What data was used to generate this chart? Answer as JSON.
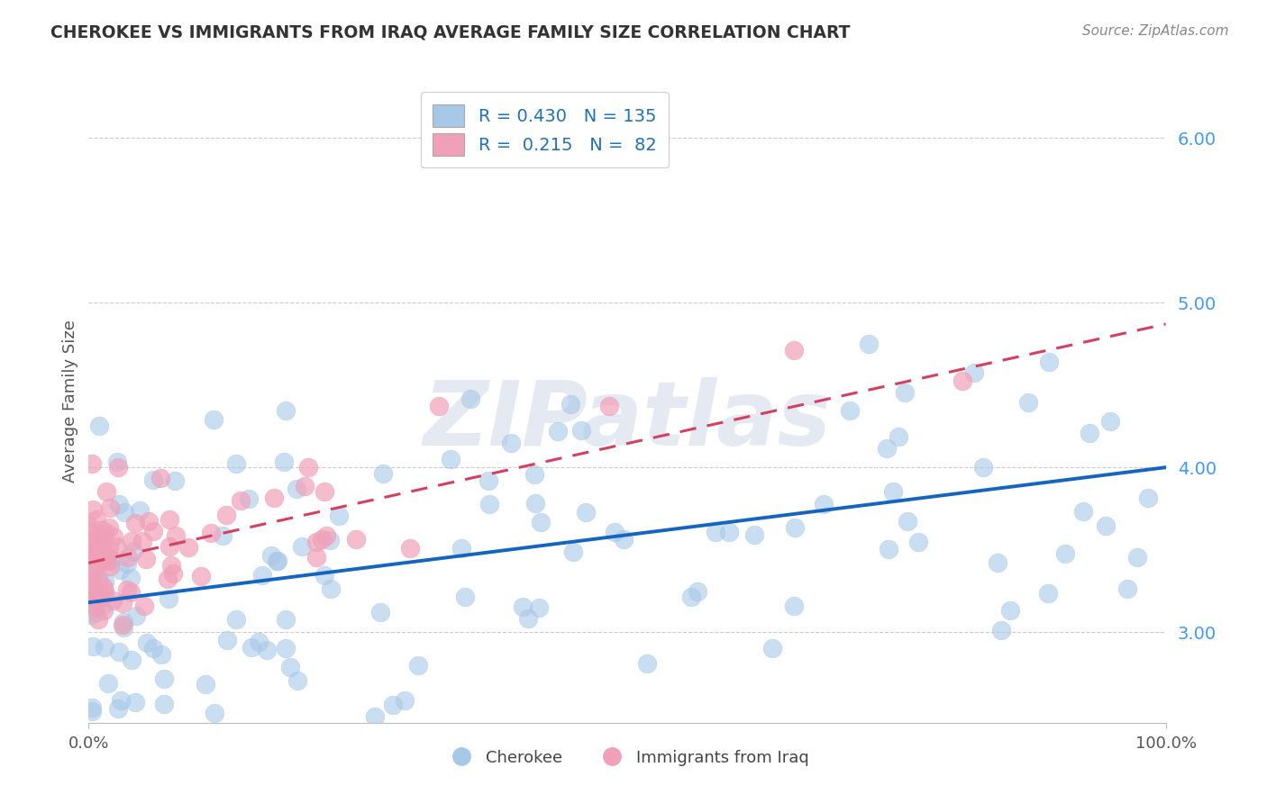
{
  "title": "CHEROKEE VS IMMIGRANTS FROM IRAQ AVERAGE FAMILY SIZE CORRELATION CHART",
  "source": "Source: ZipAtlas.com",
  "ylabel": "Average Family Size",
  "yticks": [
    3.0,
    4.0,
    5.0,
    6.0
  ],
  "xlim": [
    0.0,
    100.0
  ],
  "ylim": [
    2.45,
    6.35
  ],
  "cherokee_color": "#A8C8E8",
  "iraq_color": "#F0A0B8",
  "cherokee_line_color": "#1565C0",
  "iraq_line_color": "#D44060",
  "cherokee_R": 0.43,
  "cherokee_N": 135,
  "iraq_R": 0.215,
  "iraq_N": 82,
  "watermark": "ZIPatlas",
  "background_color": "#FFFFFF",
  "grid_color": "#CCCCCC",
  "cherokee_seed": 17,
  "iraq_seed": 42,
  "cherokee_intercept": 3.18,
  "cherokee_slope": 0.0082,
  "cherokee_noise": 0.52,
  "iraq_intercept": 3.42,
  "iraq_slope": 0.0145,
  "iraq_noise": 0.22
}
